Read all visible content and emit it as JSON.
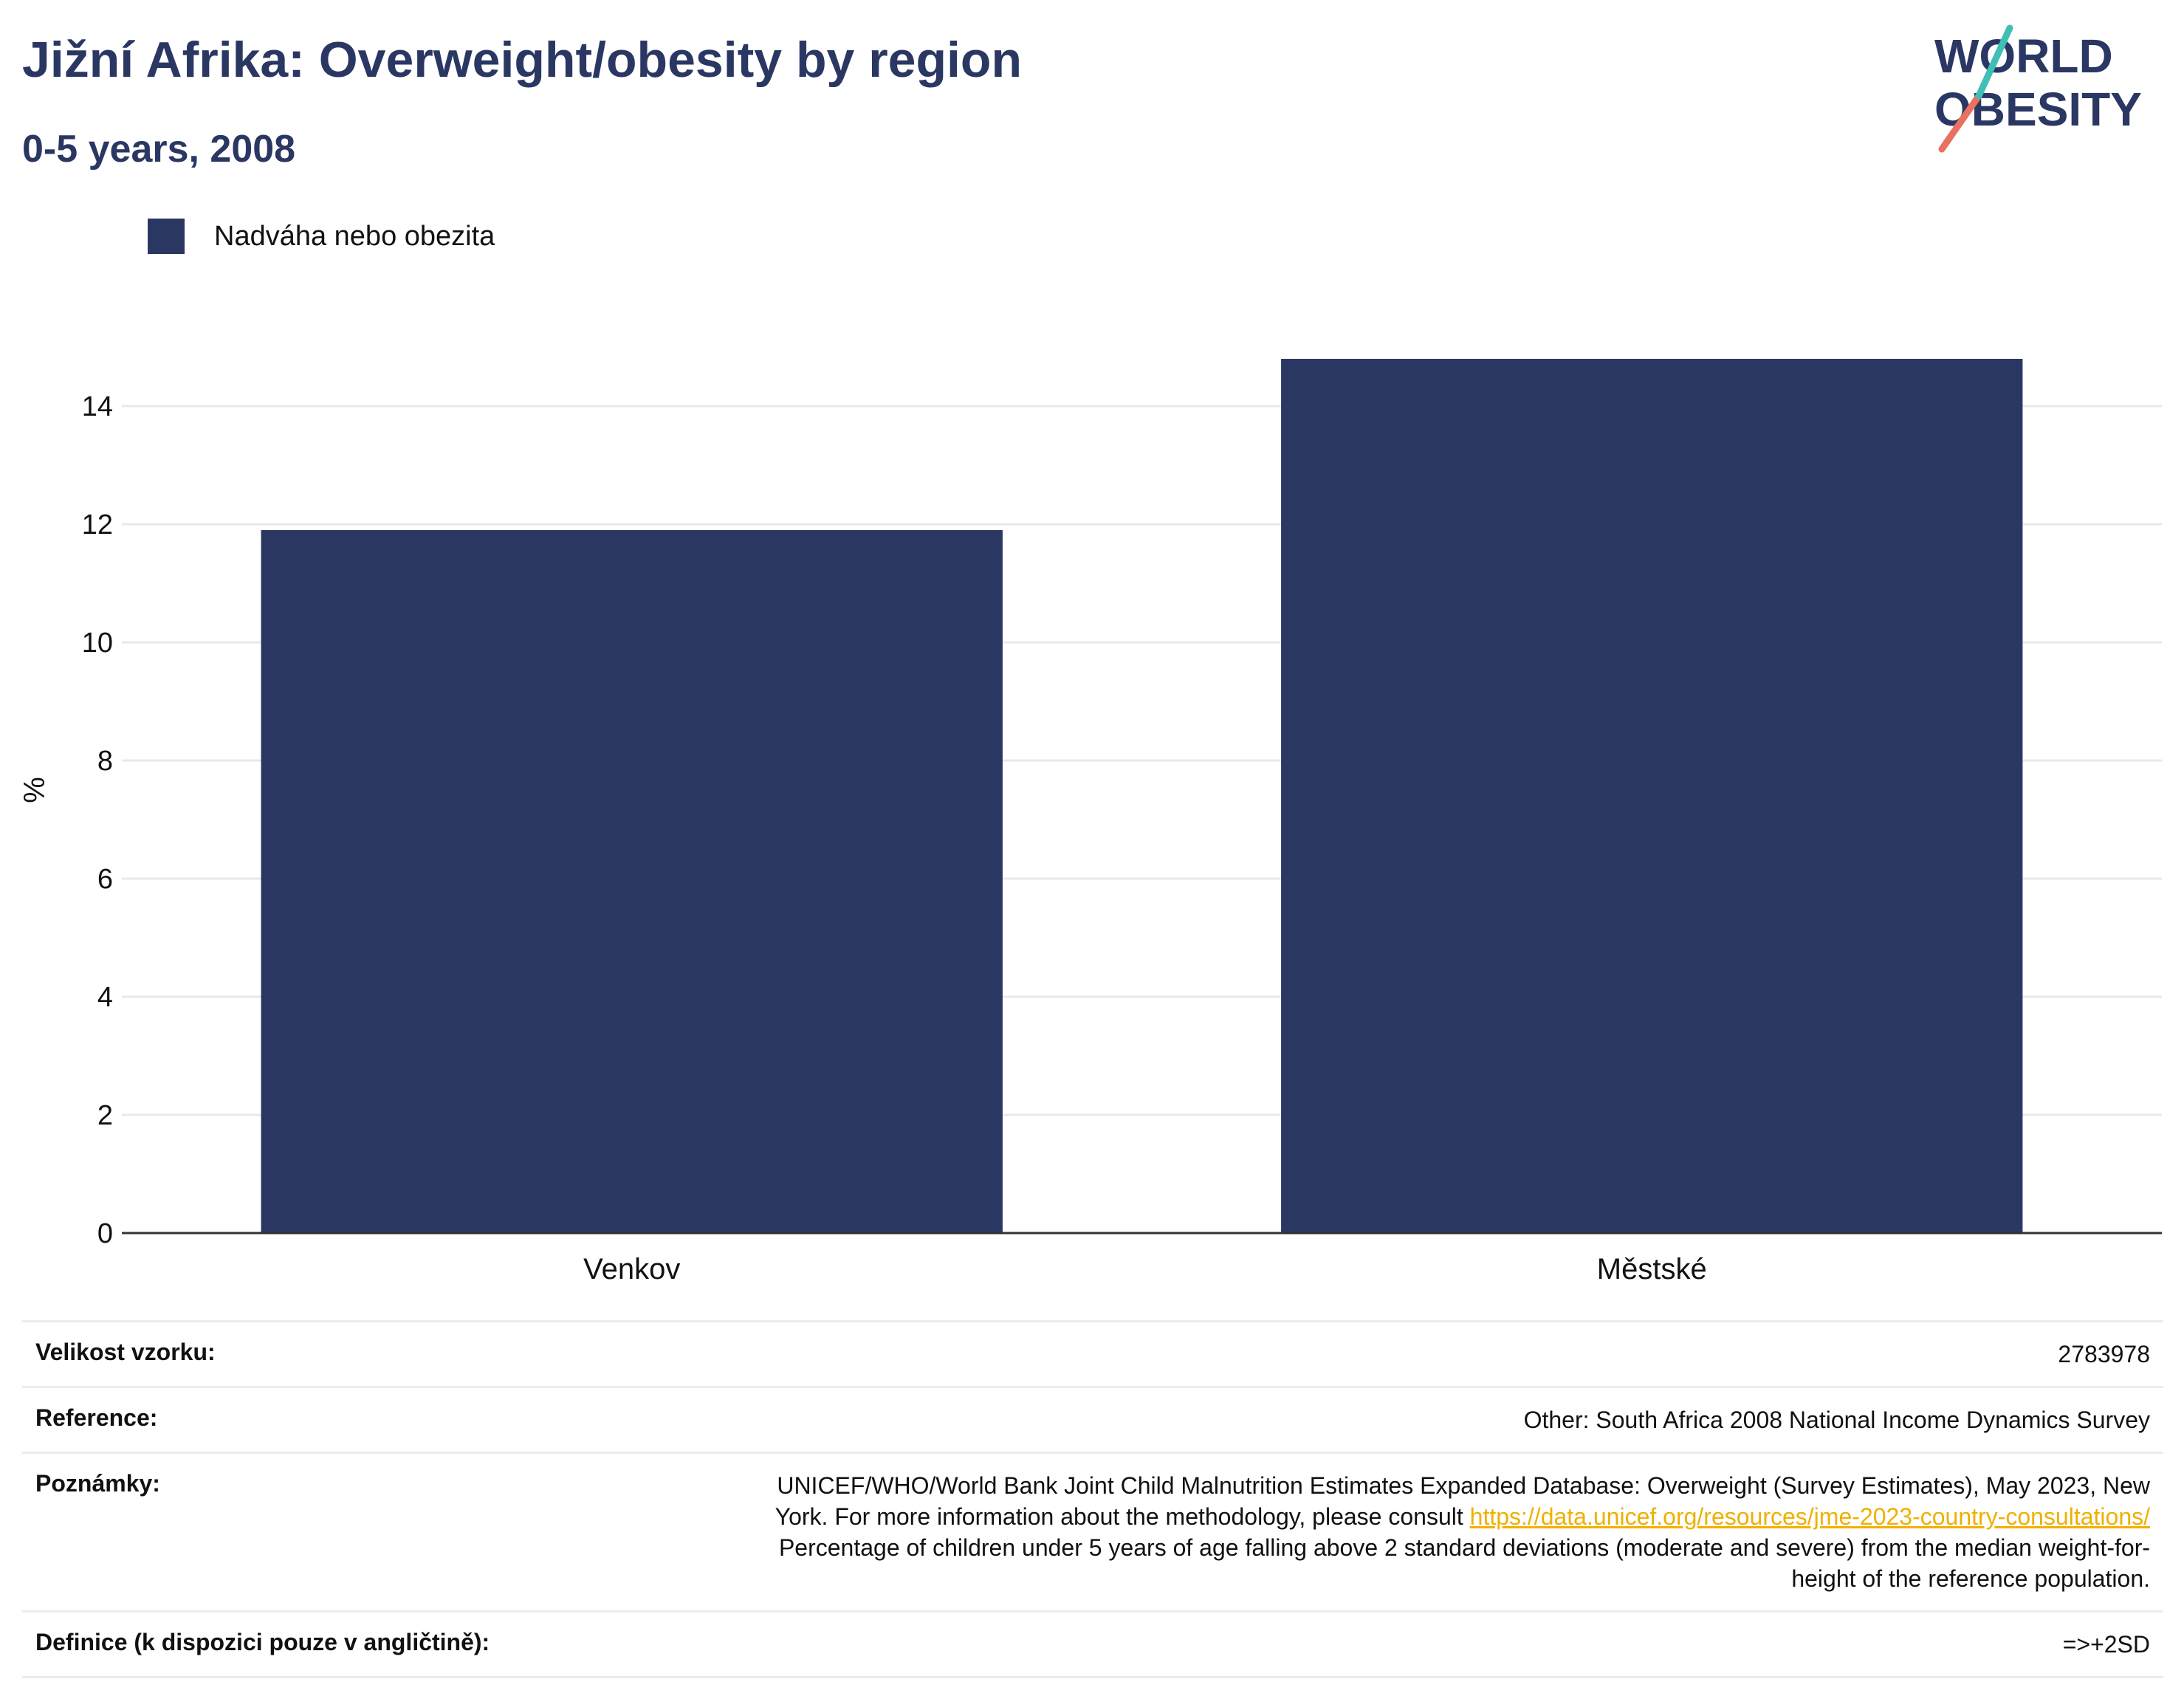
{
  "header": {
    "title": "Jižní Afrika: Overweight/obesity by region",
    "subtitle": "0-5 years, 2008"
  },
  "logo": {
    "line1": "WORLD",
    "line2": "OBESITY"
  },
  "colors": {
    "bar": "#2b3763",
    "title": "#2b3763",
    "grid": "#e8e8e8",
    "link": "#f0b000"
  },
  "chart_data": {
    "type": "bar",
    "categories": [
      "Venkov",
      "Městské"
    ],
    "series": [
      {
        "name": "Nadváha nebo obezita",
        "values": [
          11.9,
          14.8
        ]
      }
    ],
    "ylabel": "%",
    "ylim": [
      0,
      15
    ],
    "yticks": [
      0,
      2,
      4,
      6,
      8,
      10,
      12,
      14
    ],
    "grid": true,
    "legend": "top-left"
  },
  "info": {
    "sample_label": "Velikost vzorku:",
    "sample_value": "2783978",
    "reference_label": "Reference:",
    "reference_value": "Other: South Africa 2008 National Income Dynamics Survey",
    "notes_label": "Poznámky:",
    "notes_line1": "UNICEF/WHO/World Bank Joint Child Malnutrition Estimates Expanded Database: Overweight (Survey Estimates), May 2023, New",
    "notes_line2": "York. For more information about the methodology, please consult",
    "notes_link": "https://data.unicef.org/resources/jme-2023-country-consultations/",
    "notes_line3": "Percentage of children under 5 years of age falling above 2 standard deviations (moderate and severe) from the median weight-for-",
    "notes_line4": "height of the reference population.",
    "definition_label": "Definice (k dispozici pouze v angličtině):",
    "definition_value": "=>+2SD"
  }
}
